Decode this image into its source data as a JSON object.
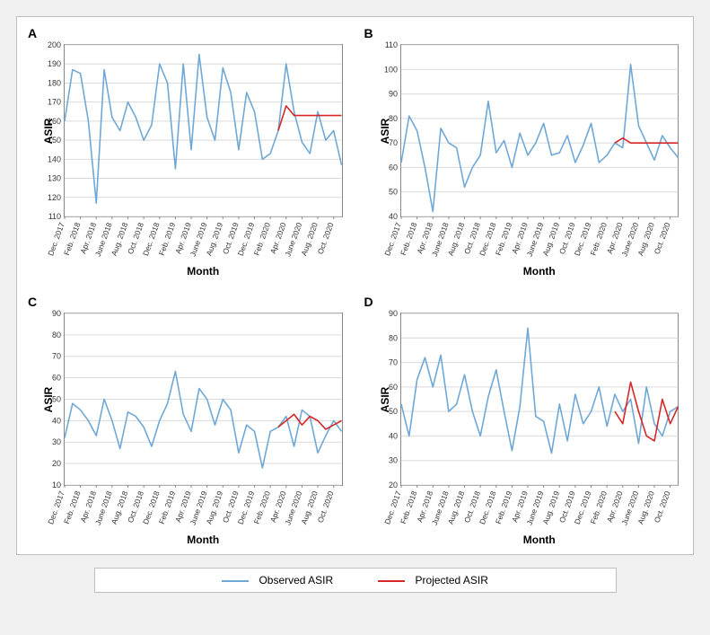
{
  "figure": {
    "background_color": "#f0f0f0",
    "panel_border_color": "#bfbfbf",
    "plot_background": "#ffffff",
    "axis_color": "#888888",
    "grid_color": "#d9d9d9",
    "observed_color": "#6fa8d6",
    "projected_color": "#d62728",
    "line_width": 1.6,
    "xlabel": "Month",
    "ylabel": "ASIR",
    "label_fontsize": 12,
    "panel_label_fontsize": 14,
    "x_categories": [
      "Dec. 2017",
      "Feb. 2018",
      "Apr. 2018",
      "June 2018",
      "Aug. 2018",
      "Oct. 2018",
      "Dec. 2018",
      "Feb. 2019",
      "Apr. 2019",
      "June 2019",
      "Aug. 2019",
      "Oct. 2019",
      "Dec. 2019",
      "Feb. 2020",
      "Apr. 2020",
      "June 2020",
      "Aug. 2020",
      "Oct. 2020"
    ],
    "x_positions": [
      0,
      2,
      4,
      6,
      8,
      10,
      12,
      14,
      16,
      18,
      20,
      22,
      24,
      26,
      28,
      30,
      32,
      34
    ],
    "x_count": 36
  },
  "legend": {
    "observed_label": "Observed ASIR",
    "projected_label": "Projected ASIR"
  },
  "panels": {
    "A": {
      "label": "A",
      "ylim": [
        110,
        200
      ],
      "ytick_step": 10,
      "observed": [
        160,
        187,
        185,
        160,
        117,
        187,
        162,
        155,
        170,
        162,
        150,
        158,
        190,
        180,
        135,
        190,
        145,
        195,
        162,
        150,
        188,
        175,
        145,
        175,
        165,
        140,
        143,
        155,
        190,
        165,
        149,
        143,
        165,
        150,
        155,
        137
      ],
      "projected_start_index": 27,
      "projected": [
        155,
        168,
        163,
        163,
        163,
        163,
        163,
        163,
        163
      ]
    },
    "B": {
      "label": "B",
      "ylim": [
        40,
        110
      ],
      "ytick_step": 10,
      "observed": [
        62,
        81,
        75,
        60,
        42,
        76,
        70,
        68,
        52,
        60,
        65,
        87,
        66,
        71,
        60,
        74,
        65,
        70,
        78,
        65,
        66,
        73,
        62,
        69,
        78,
        62,
        65,
        70,
        68,
        102,
        77,
        70,
        63,
        73,
        68,
        64
      ],
      "projected_start_index": 27,
      "projected": [
        70,
        72,
        70,
        70,
        70,
        70,
        70,
        70,
        70
      ]
    },
    "C": {
      "label": "C",
      "ylim": [
        10,
        90
      ],
      "ytick_step": 10,
      "observed": [
        32,
        48,
        45,
        40,
        33,
        50,
        40,
        27,
        44,
        42,
        37,
        28,
        40,
        48,
        63,
        43,
        35,
        55,
        50,
        38,
        50,
        45,
        25,
        38,
        35,
        18,
        35,
        37,
        42,
        28,
        45,
        42,
        25,
        33,
        40,
        35
      ],
      "projected_start_index": 27,
      "projected": [
        37,
        40,
        43,
        38,
        42,
        40,
        36,
        38,
        40
      ]
    },
    "D": {
      "label": "D",
      "ylim": [
        20,
        90
      ],
      "ytick_step": 10,
      "observed": [
        53,
        40,
        63,
        72,
        60,
        73,
        50,
        53,
        65,
        50,
        40,
        56,
        67,
        50,
        34,
        52,
        84,
        48,
        46,
        33,
        53,
        38,
        57,
        45,
        50,
        60,
        44,
        57,
        50,
        55,
        37,
        60,
        45,
        40,
        50,
        52
      ],
      "projected_start_index": 27,
      "projected": [
        50,
        45,
        62,
        50,
        40,
        38,
        55,
        45,
        52
      ]
    }
  }
}
